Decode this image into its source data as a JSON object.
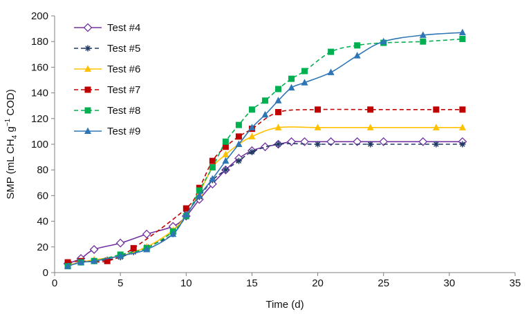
{
  "chart_data": {
    "type": "line",
    "title": "",
    "xlabel": "Time (d)",
    "ylabel_parts": [
      "SMP (mL CH",
      "4",
      " g",
      "−1",
      " COD)"
    ],
    "xlim": [
      0,
      35
    ],
    "ylim": [
      0,
      200
    ],
    "xticks": [
      0,
      5,
      10,
      15,
      20,
      25,
      30,
      35
    ],
    "yticks": [
      0,
      20,
      40,
      60,
      80,
      100,
      120,
      140,
      160,
      180,
      200
    ],
    "grid": false,
    "legend_position": "top-left",
    "series": [
      {
        "name": "Test #4",
        "color": "#7030a0",
        "marker": "diamond-open",
        "dash": "solid",
        "x": [
          1,
          2,
          3,
          5,
          7,
          9,
          10,
          11,
          12,
          13,
          14,
          15,
          16,
          17,
          18,
          19,
          21,
          23,
          25,
          28,
          31
        ],
        "y": [
          7,
          11,
          18,
          23,
          30,
          36,
          44,
          57,
          69,
          80,
          89,
          95,
          98,
          100,
          102,
          102,
          102,
          102,
          102,
          102,
          102
        ]
      },
      {
        "name": "Test #5",
        "color": "#1f3864",
        "marker": "asterisk",
        "dash": "dashed",
        "x": [
          1,
          2,
          3,
          4,
          5,
          6,
          7,
          9,
          10,
          11,
          12,
          13,
          14,
          15,
          17,
          20,
          24,
          29,
          31
        ],
        "y": [
          6,
          8,
          9,
          10,
          12,
          16,
          20,
          30,
          46,
          59,
          72,
          80,
          87,
          94,
          100,
          100,
          100,
          100,
          100
        ]
      },
      {
        "name": "Test #6",
        "color": "#ffc000",
        "marker": "triangle",
        "dash": "solid",
        "x": [
          1,
          2,
          3,
          5,
          7,
          9,
          10,
          11,
          12,
          13,
          14,
          15,
          17,
          20,
          24,
          29,
          31
        ],
        "y": [
          6,
          8,
          10,
          13,
          20,
          33,
          45,
          62,
          82,
          92,
          100,
          106,
          113,
          113,
          113,
          113,
          113
        ]
      },
      {
        "name": "Test #7",
        "color": "#c00000",
        "marker": "square",
        "dash": "dashed",
        "x": [
          1,
          2,
          4,
          6,
          10,
          11,
          12,
          13,
          14,
          15,
          17,
          20,
          24,
          29,
          31
        ],
        "y": [
          8,
          9,
          9,
          19,
          50,
          66,
          87,
          98,
          106,
          112,
          125,
          127,
          127,
          127,
          127
        ]
      },
      {
        "name": "Test #8",
        "color": "#00b050",
        "marker": "square",
        "dash": "dashed",
        "x": [
          1,
          2,
          3,
          5,
          7,
          9,
          10,
          11,
          12,
          13,
          14,
          15,
          16,
          17,
          18,
          19,
          21,
          23,
          25,
          28,
          31
        ],
        "y": [
          5,
          8,
          9,
          14,
          19,
          32,
          44,
          64,
          82,
          102,
          115,
          127,
          134,
          143,
          151,
          157,
          172,
          177,
          179,
          180,
          182
        ]
      },
      {
        "name": "Test #9",
        "color": "#2e75b6",
        "marker": "triangle",
        "dash": "solid",
        "x": [
          1,
          2,
          3,
          5,
          7,
          9,
          10,
          11,
          12,
          13,
          14,
          15,
          16,
          17,
          18,
          19,
          21,
          23,
          25,
          28,
          31
        ],
        "y": [
          5,
          8,
          9,
          13,
          18,
          30,
          45,
          60,
          73,
          87,
          100,
          113,
          123,
          134,
          144,
          148,
          156,
          169,
          180,
          185,
          187
        ]
      }
    ]
  }
}
